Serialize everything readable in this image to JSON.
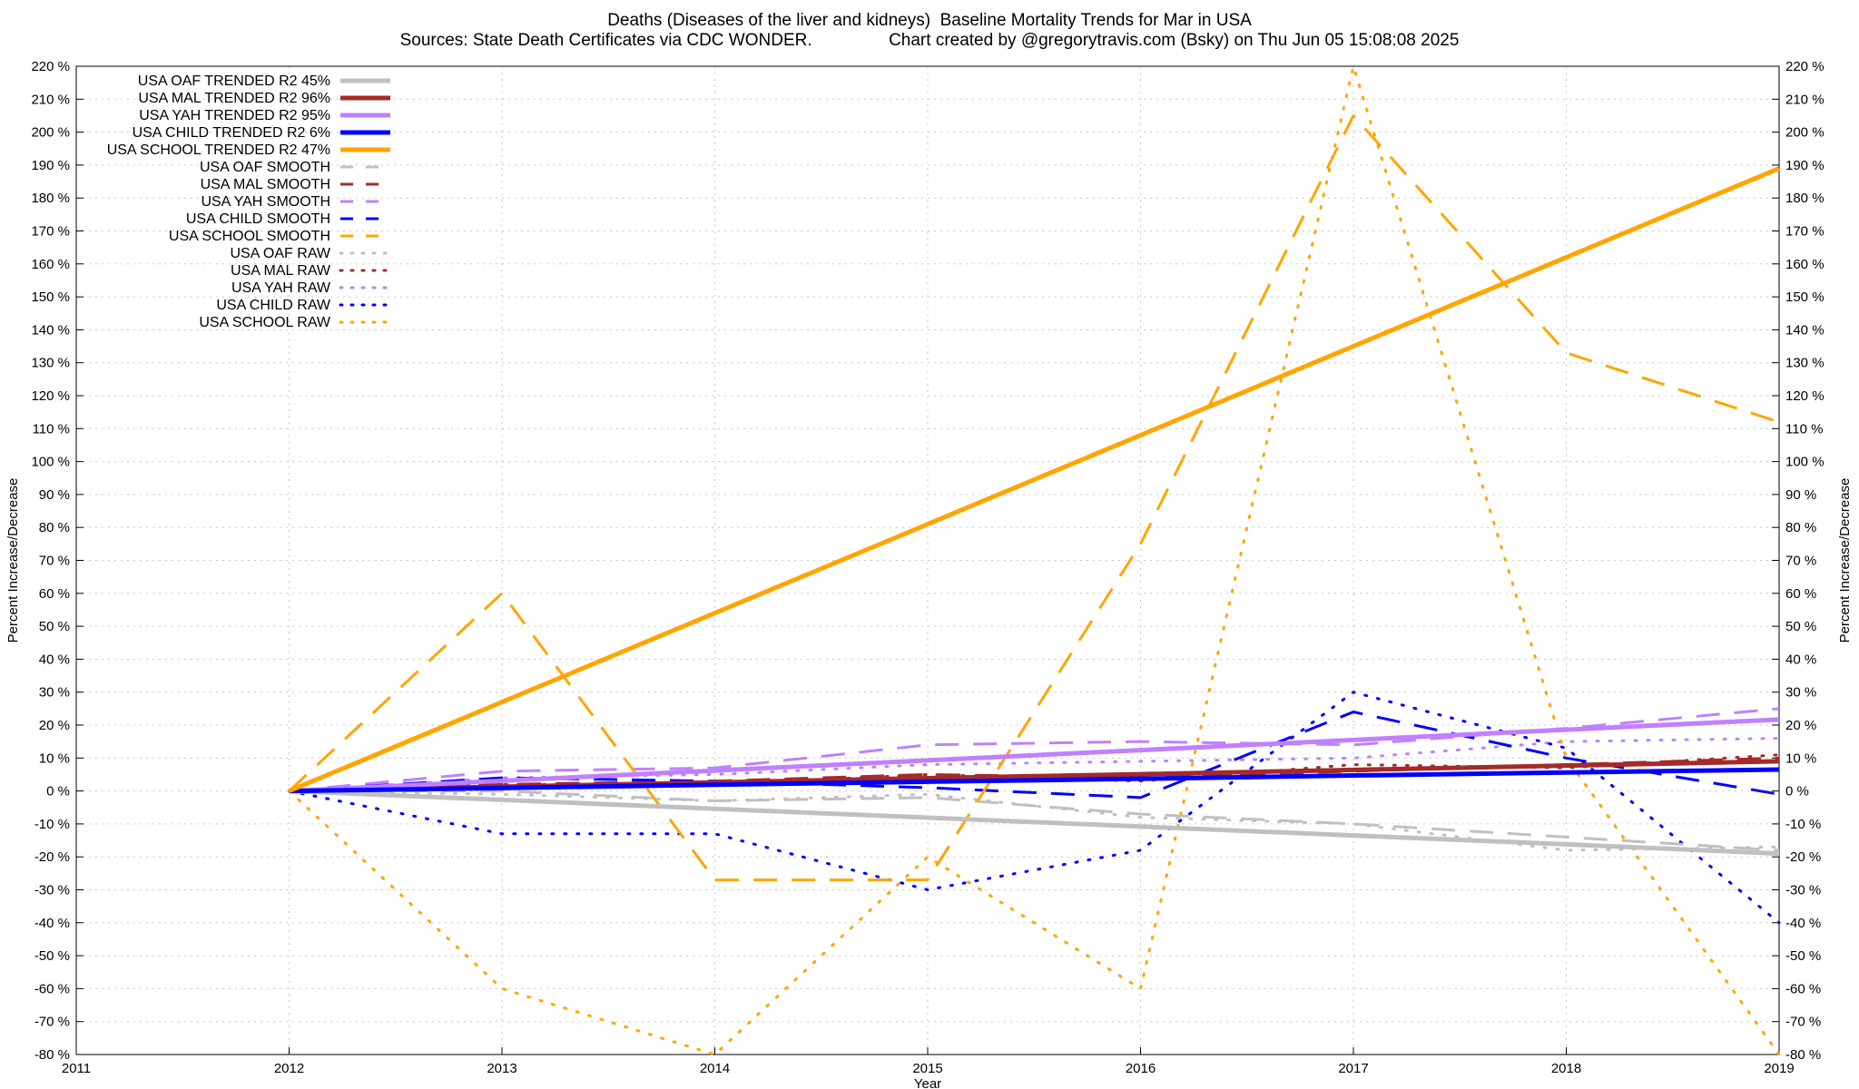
{
  "chart_data": {
    "type": "line",
    "title": "Deaths (Diseases of the liver and kidneys)  Baseline Mortality Trends for Mar in USA",
    "subtitle": "Sources: State Death Certificates via CDC WONDER.                Chart created by @gregorytravis.com (Bsky) on Thu Jun 05 15:08:08 2025",
    "xlabel": "Year",
    "ylabel": "Percent Increase/Decrease",
    "ylabel_right": "Percent Increase/Decrease",
    "xlim": [
      2011,
      2019
    ],
    "ylim": [
      -80,
      220
    ],
    "x_ticks": [
      2011,
      2012,
      2013,
      2014,
      2015,
      2016,
      2017,
      2018,
      2019
    ],
    "y_ticks": [
      -80,
      -70,
      -60,
      -50,
      -40,
      -30,
      -20,
      -10,
      0,
      10,
      20,
      30,
      40,
      50,
      60,
      70,
      80,
      90,
      100,
      110,
      120,
      130,
      140,
      150,
      160,
      170,
      180,
      190,
      200,
      210,
      220
    ],
    "y_tick_suffix": " %",
    "grid": true,
    "legend_position": "top-left",
    "x": [
      2012,
      2013,
      2014,
      2015,
      2016,
      2017,
      2018,
      2019
    ],
    "series": [
      {
        "name": "USA OAF TRENDED R2  45%",
        "style": "solid",
        "color": "#c0c0c0",
        "values": [
          0,
          -2.7,
          -5.4,
          -8.1,
          -10.8,
          -13.5,
          -16.2,
          -19
        ]
      },
      {
        "name": "USA MAL TRENDED R2  96%",
        "style": "solid",
        "color": "#a52a2a",
        "values": [
          0,
          1.3,
          2.6,
          3.9,
          5.1,
          6.4,
          7.7,
          9
        ]
      },
      {
        "name": "USA YAH TRENDED R2  95%",
        "style": "solid",
        "color": "#c080ff",
        "values": [
          0,
          3.1,
          6.2,
          9.3,
          12.4,
          15.5,
          18.6,
          21.7
        ]
      },
      {
        "name": "USA CHILD TRENDED R2   6%",
        "style": "solid",
        "color": "#0000ff",
        "values": [
          0,
          0.9,
          1.9,
          2.8,
          3.7,
          4.7,
          5.6,
          6.5
        ]
      },
      {
        "name": "USA SCHOOL TRENDED R2  47%",
        "style": "solid",
        "color": "#ffa500",
        "values": [
          0,
          27,
          54,
          81,
          108,
          135,
          162,
          189
        ]
      },
      {
        "name": "USA OAF SMOOTH",
        "style": "dash",
        "color": "#c0c0c0",
        "values": [
          0,
          0,
          -3,
          -2,
          -7,
          -10,
          -14,
          -18
        ]
      },
      {
        "name": "USA MAL SMOOTH",
        "style": "dash",
        "color": "#a52a2a",
        "values": [
          0,
          2,
          3,
          5,
          4,
          6,
          8,
          10
        ]
      },
      {
        "name": "USA YAH SMOOTH",
        "style": "dash",
        "color": "#c080ff",
        "values": [
          0,
          6,
          7,
          14,
          15,
          14,
          19,
          25
        ]
      },
      {
        "name": "USA CHILD SMOOTH",
        "style": "dash",
        "color": "#0000ff",
        "values": [
          0,
          4,
          3,
          1,
          -2,
          24,
          10,
          -1
        ]
      },
      {
        "name": "USA SCHOOL SMOOTH",
        "style": "dash",
        "color": "#ffa500",
        "values": [
          0,
          60,
          -27,
          -27,
          75,
          205,
          133,
          112
        ]
      },
      {
        "name": "USA OAF RAW",
        "style": "dot",
        "color": "#c0c0c0",
        "values": [
          0,
          -1,
          -3,
          -1,
          -8,
          -10,
          -18,
          -17
        ]
      },
      {
        "name": "USA MAL RAW",
        "style": "dot",
        "color": "#a52a2a",
        "values": [
          0,
          2,
          2,
          5,
          3,
          8,
          7,
          11
        ]
      },
      {
        "name": "USA YAH RAW",
        "style": "dot",
        "color": "#c080ff",
        "values": [
          0,
          4,
          5,
          8,
          9,
          10,
          15,
          16
        ]
      },
      {
        "name": "USA CHILD RAW",
        "style": "dot",
        "color": "#0000ff",
        "values": [
          0,
          -13,
          -13,
          -30,
          -18,
          30,
          13,
          -40
        ]
      },
      {
        "name": "USA SCHOOL RAW",
        "style": "dot",
        "color": "#ffa500",
        "values": [
          0,
          -60,
          -80,
          -20,
          -60,
          220,
          10,
          -80
        ]
      }
    ]
  }
}
